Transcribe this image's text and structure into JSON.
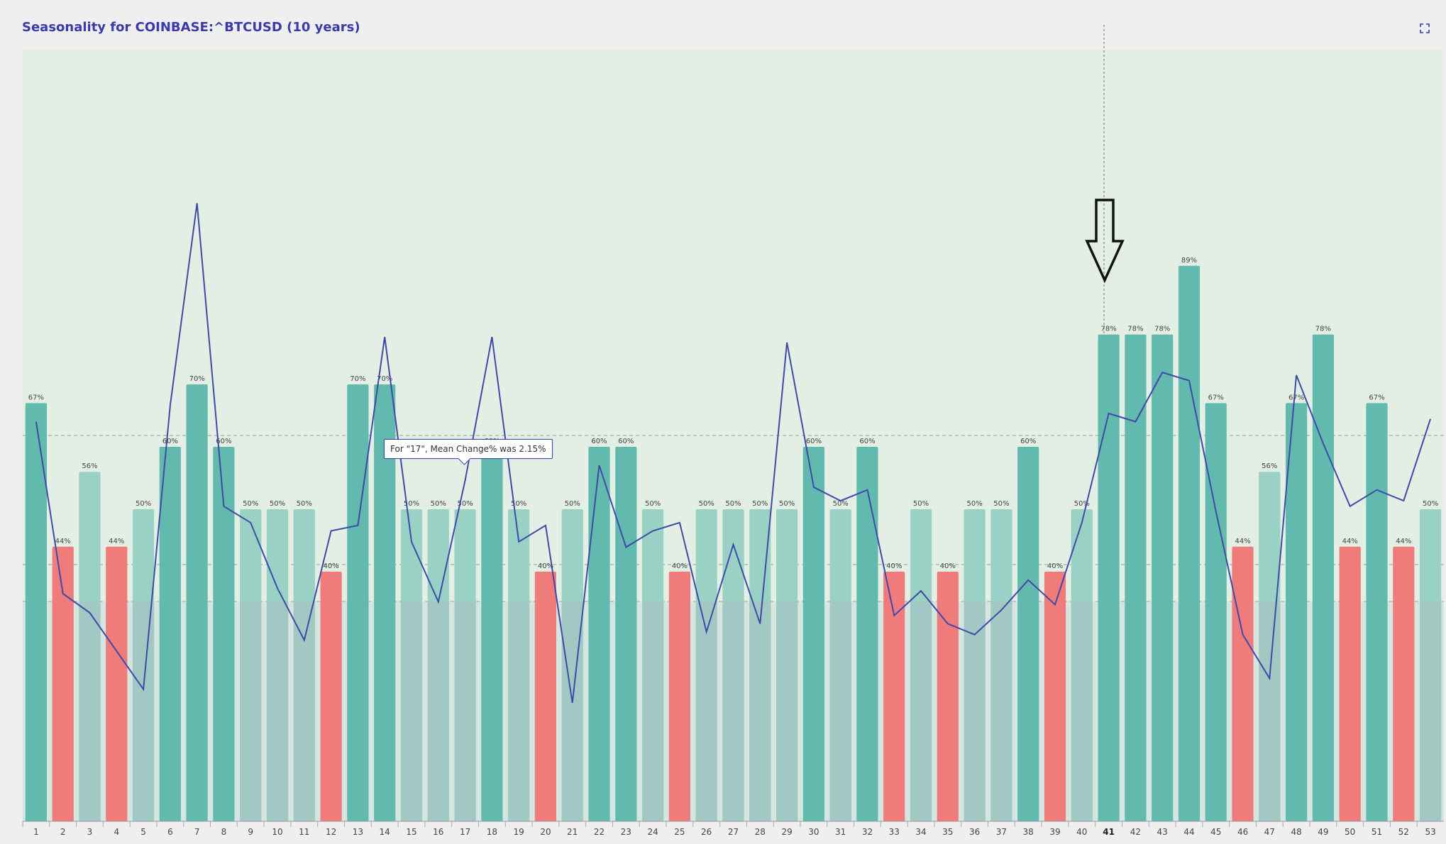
{
  "header": {
    "title": "Seasonality for COINBASE:^BTCUSD (10 years)"
  },
  "icons": {
    "expand": "expand-icon",
    "pointer": "down-arrow-annotation-icon"
  },
  "tooltip": {
    "text": "For \"17\", Mean Change% was 2.15%"
  },
  "colors": {
    "plot_bg": "#e3efe4",
    "strong": "#62b9ad",
    "weak": "#99d2c4",
    "lower": "#a2c8c3",
    "negative": "#ef7b7b",
    "line": "#3f4aa8",
    "title": "#3a3aa8"
  },
  "chart_data": {
    "type": "bar",
    "categories": [
      "1",
      "2",
      "3",
      "4",
      "5",
      "6",
      "7",
      "8",
      "9",
      "10",
      "11",
      "12",
      "13",
      "14",
      "15",
      "16",
      "17",
      "18",
      "19",
      "20",
      "21",
      "22",
      "23",
      "24",
      "25",
      "26",
      "27",
      "28",
      "29",
      "30",
      "31",
      "32",
      "33",
      "34",
      "35",
      "36",
      "37",
      "38",
      "39",
      "40",
      "41",
      "42",
      "43",
      "44",
      "45",
      "46",
      "47",
      "48",
      "49",
      "50",
      "51",
      "52",
      "53"
    ],
    "series": [
      {
        "values": [
          67,
          44,
          56,
          44,
          50,
          60,
          70,
          60,
          50,
          50,
          50,
          40,
          70,
          70,
          50,
          50,
          50,
          60,
          50,
          40,
          50,
          60,
          60,
          50,
          40,
          50,
          50,
          50,
          50,
          60,
          50,
          60,
          40,
          50,
          40,
          50,
          50,
          60,
          40,
          50,
          78,
          78,
          78,
          89,
          67,
          44,
          56,
          67,
          78,
          44,
          67,
          44,
          50
        ]
      },
      {
        "values": [
          4.3,
          -2.0,
          -2.7,
          -4.1,
          -5.5,
          4.9,
          12.3,
          1.2,
          0.6,
          -1.8,
          -3.7,
          0.3,
          0.5,
          7.4,
          -0.1,
          -2.3,
          2.15,
          7.4,
          -0.1,
          0.5,
          -6.0,
          2.7,
          -0.3,
          0.3,
          0.6,
          -3.4,
          -0.2,
          -3.1,
          7.2,
          1.9,
          1.4,
          1.8,
          -2.8,
          -1.9,
          -3.1,
          -3.5,
          -2.6,
          -1.5,
          -2.4,
          0.6,
          4.6,
          4.3,
          6.1,
          5.8,
          1.0,
          -3.5,
          -5.1,
          6.0,
          3.5,
          1.2,
          1.8,
          1.4,
          4.4
        ]
      }
    ],
    "highlighted_category": "41"
  }
}
